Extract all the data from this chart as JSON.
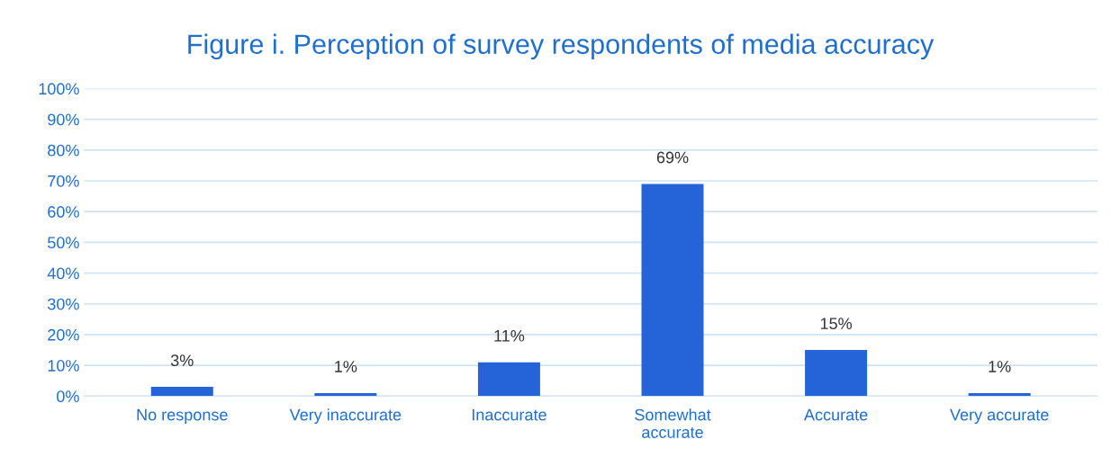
{
  "chart_data": {
    "type": "bar",
    "title": "Figure i. Perception of survey respondents of media accuracy",
    "categories": [
      "No response",
      "Very inaccurate",
      "Inaccurate",
      "Somewhat accurate",
      "Accurate",
      "Very accurate"
    ],
    "values": [
      3,
      1,
      11,
      69,
      15,
      1
    ],
    "value_labels": [
      "3%",
      "1%",
      "11%",
      "69%",
      "15%",
      "1%"
    ],
    "color": "#2563d9",
    "ylim": [
      0,
      100
    ],
    "yticks": [
      {
        "value": 0,
        "label": "0%"
      },
      {
        "value": 10,
        "label": "10%"
      },
      {
        "value": 20,
        "label": "20%"
      },
      {
        "value": 30,
        "label": "30%"
      },
      {
        "value": 40,
        "label": "40%"
      },
      {
        "value": 50,
        "label": "50%"
      },
      {
        "value": 60,
        "label": "60%"
      },
      {
        "value": 70,
        "label": "70%"
      },
      {
        "value": 80,
        "label": "80%"
      },
      {
        "value": 90,
        "label": "90%"
      },
      {
        "value": 100,
        "label": "100%"
      }
    ],
    "grid": "y"
  }
}
